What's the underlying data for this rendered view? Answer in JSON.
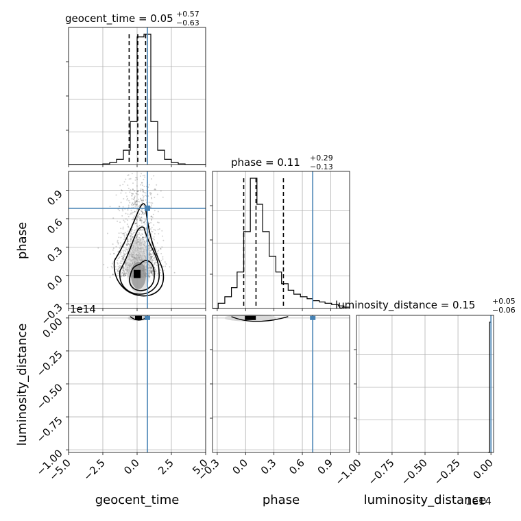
{
  "chart_data": {
    "type": "corner",
    "parameters": [
      "geocent_time",
      "phase",
      "luminosity_distance"
    ],
    "axis_labels": [
      "geocent_time",
      "phase",
      "luminosity_distance"
    ],
    "titles": [
      {
        "param": "geocent_time",
        "text": "geocent_time = 0.05",
        "sup": "+0.57",
        "sub": "−0.63",
        "median": 0.05,
        "plus": 0.57,
        "minus": 0.63
      },
      {
        "param": "phase",
        "text": "phase = 0.11",
        "sup": "+0.29",
        "sub": "−0.13",
        "median": 0.11,
        "plus": 0.29,
        "minus": 0.13
      },
      {
        "param": "luminosity_distance",
        "text": "luminosity_distance = 0.15",
        "sup": "+0.05",
        "sub": "−0.06",
        "median": 0.15,
        "plus": 0.05,
        "minus": 0.06
      }
    ],
    "ranges": {
      "geocent_time": [
        -5.0,
        5.0
      ],
      "phase": [
        -0.35,
        1.1
      ],
      "luminosity_distance": [
        -1.02,
        0.02
      ]
    },
    "ticks": {
      "geocent_time": [
        "−5.0",
        "−2.5",
        "0.0",
        "2.5",
        "5.0"
      ],
      "geocent_time_values": [
        -5.0,
        -2.5,
        0.0,
        2.5,
        5.0
      ],
      "phase": [
        "−0.3",
        "0.0",
        "0.3",
        "0.6",
        "0.9"
      ],
      "phase_values": [
        -0.3,
        0.0,
        0.3,
        0.6,
        0.9
      ],
      "luminosity_distance": [
        "−1.00",
        "−0.75",
        "−0.50",
        "−0.25",
        "0.00"
      ],
      "luminosity_distance_values": [
        -1.0,
        -0.75,
        -0.5,
        -0.25,
        0.0
      ]
    },
    "offset_labels": {
      "luminosity_distance_y": "1e14",
      "luminosity_distance_x": "1e14"
    },
    "truths": {
      "geocent_time": 0.75,
      "phase": 0.71,
      "luminosity_distance": 0.0
    },
    "quantile_lines": {
      "geocent_time": [
        -0.58,
        0.05,
        0.62
      ],
      "phase": [
        -0.02,
        0.11,
        0.4
      ]
    },
    "hist_geocent_time": {
      "edges": [
        -5.0,
        -4.5,
        -4.0,
        -3.5,
        -3.0,
        -2.5,
        -2.0,
        -1.5,
        -1.0,
        -0.5,
        0.0,
        0.5,
        1.0,
        1.5,
        2.0,
        2.5,
        3.0,
        3.5,
        4.0,
        4.5,
        5.0
      ],
      "counts": [
        0,
        0,
        0,
        0,
        0,
        0.005,
        0.015,
        0.04,
        0.11,
        0.33,
        0.98,
        1.0,
        0.33,
        0.11,
        0.04,
        0.015,
        0.005,
        0,
        0,
        0
      ]
    },
    "hist_phase": {
      "edges": [
        -0.35,
        -0.29,
        -0.22,
        -0.15,
        -0.09,
        -0.02,
        0.05,
        0.12,
        0.18,
        0.25,
        0.32,
        0.38,
        0.45,
        0.51,
        0.58,
        0.65,
        0.71,
        0.78,
        0.84,
        0.91,
        0.98,
        1.04,
        1.1
      ],
      "counts": [
        0.0,
        0.04,
        0.09,
        0.16,
        0.28,
        0.59,
        1.0,
        0.8,
        0.59,
        0.4,
        0.28,
        0.19,
        0.14,
        0.11,
        0.09,
        0.075,
        0.06,
        0.05,
        0.04,
        0.03,
        0.02,
        0.01
      ]
    },
    "hist_luminosity_distance": {
      "edges": [
        -0.02,
        -0.01,
        0.0
      ],
      "counts": [
        0.0,
        1.0
      ]
    }
  }
}
